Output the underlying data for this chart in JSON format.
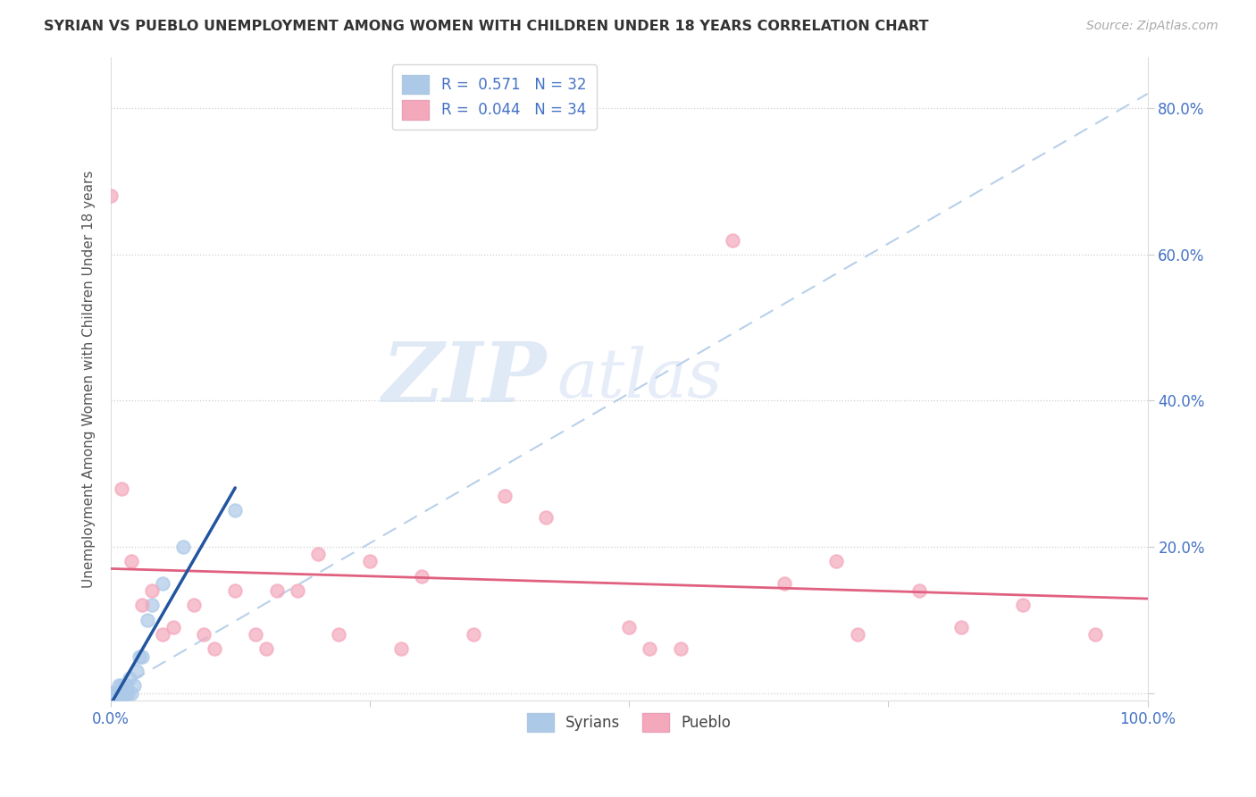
{
  "title": "SYRIAN VS PUEBLO UNEMPLOYMENT AMONG WOMEN WITH CHILDREN UNDER 18 YEARS CORRELATION CHART",
  "source": "Source: ZipAtlas.com",
  "ylabel": "Unemployment Among Women with Children Under 18 years",
  "xlim": [
    0.0,
    1.0
  ],
  "ylim": [
    -0.01,
    0.87
  ],
  "xticks": [
    0.0,
    0.25,
    0.5,
    0.75,
    1.0
  ],
  "xticklabels": [
    "0.0%",
    "",
    "",
    "",
    "100.0%"
  ],
  "ytick_positions": [
    0.0,
    0.2,
    0.4,
    0.6,
    0.8
  ],
  "yticklabels": [
    "",
    "20.0%",
    "40.0%",
    "60.0%",
    "80.0%"
  ],
  "syrians_R": 0.571,
  "syrians_N": 32,
  "pueblo_R": 0.044,
  "pueblo_N": 34,
  "legend_entries": [
    "Syrians",
    "Pueblo"
  ],
  "syrian_color": "#adc9e8",
  "pueblo_color": "#f4a8bc",
  "syrian_line_color": "#2255a0",
  "pueblo_line_color": "#e06080",
  "dashed_line_color": "#b8d0ea",
  "watermark_zip": "ZIP",
  "watermark_atlas": "atlas",
  "background_color": "#ffffff",
  "syrians_x": [
    0.0,
    0.0,
    0.0,
    0.0,
    0.0,
    0.002,
    0.003,
    0.004,
    0.005,
    0.006,
    0.007,
    0.008,
    0.009,
    0.01,
    0.01,
    0.012,
    0.013,
    0.014,
    0.015,
    0.015,
    0.016,
    0.018,
    0.02,
    0.022,
    0.025,
    0.028,
    0.03,
    0.035,
    0.04,
    0.05,
    0.07,
    0.12
  ],
  "syrians_y": [
    0.0,
    0.0,
    0.0,
    0.0,
    0.0,
    0.0,
    0.0,
    0.0,
    0.0,
    0.0,
    0.0,
    0.01,
    0.0,
    0.0,
    0.01,
    0.0,
    0.0,
    0.0,
    0.0,
    0.01,
    0.0,
    0.02,
    0.0,
    0.01,
    0.03,
    0.05,
    0.05,
    0.1,
    0.12,
    0.15,
    0.2,
    0.25
  ],
  "pueblo_x": [
    0.0,
    0.01,
    0.02,
    0.03,
    0.04,
    0.05,
    0.06,
    0.08,
    0.09,
    0.1,
    0.12,
    0.14,
    0.15,
    0.16,
    0.18,
    0.2,
    0.22,
    0.25,
    0.28,
    0.3,
    0.35,
    0.38,
    0.42,
    0.5,
    0.52,
    0.55,
    0.6,
    0.65,
    0.7,
    0.72,
    0.78,
    0.82,
    0.88,
    0.95
  ],
  "pueblo_y": [
    0.68,
    0.28,
    0.18,
    0.12,
    0.14,
    0.08,
    0.09,
    0.12,
    0.08,
    0.06,
    0.14,
    0.08,
    0.06,
    0.14,
    0.14,
    0.19,
    0.08,
    0.18,
    0.06,
    0.16,
    0.08,
    0.27,
    0.24,
    0.09,
    0.06,
    0.06,
    0.62,
    0.15,
    0.18,
    0.08,
    0.14,
    0.09,
    0.12,
    0.08
  ],
  "pueblo_line_y_start": 0.155,
  "pueblo_line_y_end": 0.165,
  "dashed_line_end_y": 0.82
}
